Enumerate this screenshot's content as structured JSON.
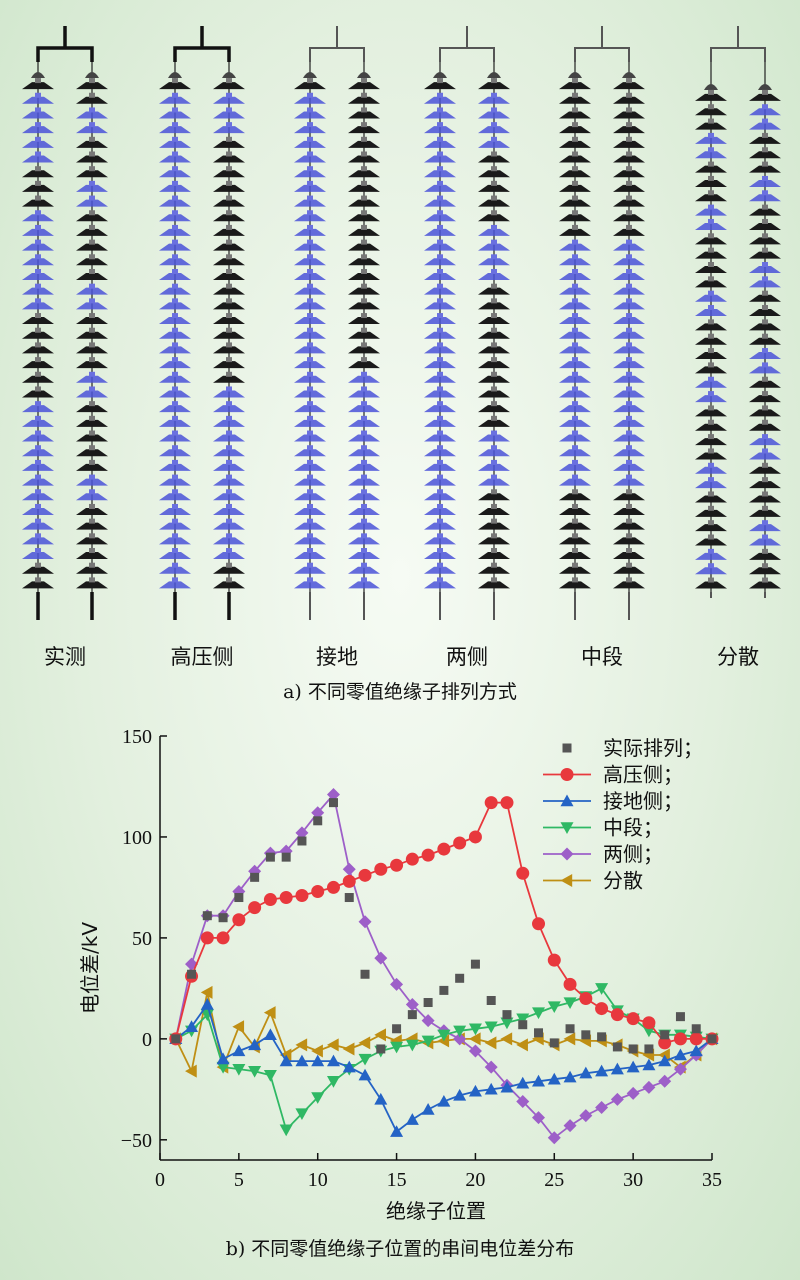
{
  "panel_a": {
    "labels": [
      "实测",
      "高压侧",
      "接地",
      "两侧",
      "中段",
      "分散"
    ],
    "caption": "a) 不同零值绝缘子排列方式",
    "colors": {
      "normal_disc": "#1a1a1a",
      "zero_disc": "#4a52d8",
      "frame_dark": "#111111",
      "frame_light": "#555555"
    }
  },
  "panel_b": {
    "caption": "b) 不同零值绝缘子位置的串间电位差分布"
  },
  "chart_data": {
    "type": "line",
    "xlabel": "绝缘子位置",
    "ylabel": "电位差/kV",
    "xlim": [
      0,
      35
    ],
    "ylim": [
      -60,
      150
    ],
    "xticks": [
      0,
      5,
      10,
      15,
      20,
      25,
      30,
      35
    ],
    "yticks": [
      -50,
      0,
      50,
      100,
      150
    ],
    "grid": false,
    "legend_position": "top-right",
    "series": [
      {
        "name": "实际排列；",
        "marker": "square",
        "color": "#555555",
        "line": false,
        "x": [
          1,
          2,
          3,
          4,
          5,
          6,
          7,
          8,
          9,
          10,
          11,
          12,
          13,
          14,
          15,
          16,
          17,
          18,
          19,
          20,
          21,
          22,
          23,
          24,
          25,
          26,
          27,
          28,
          29,
          30,
          31,
          32,
          33,
          34,
          35
        ],
        "y": [
          0,
          32,
          61,
          60,
          70,
          80,
          90,
          90,
          98,
          108,
          117,
          70,
          32,
          -5,
          5,
          12,
          18,
          24,
          30,
          37,
          19,
          12,
          7,
          3,
          -2,
          5,
          2,
          1,
          -4,
          -5,
          -5,
          2,
          11,
          5,
          0
        ]
      },
      {
        "name": "高压侧；",
        "marker": "circle",
        "color": "#e8383d",
        "line": true,
        "x": [
          1,
          2,
          3,
          4,
          5,
          6,
          7,
          8,
          9,
          10,
          11,
          12,
          13,
          14,
          15,
          16,
          17,
          18,
          19,
          20,
          21,
          22,
          23,
          24,
          25,
          26,
          27,
          28,
          29,
          30,
          31,
          32,
          33,
          34,
          35
        ],
        "y": [
          0,
          31,
          50,
          50,
          59,
          65,
          69,
          70,
          71,
          73,
          75,
          78,
          81,
          84,
          86,
          89,
          91,
          94,
          97,
          100,
          117,
          117,
          82,
          57,
          39,
          27,
          20,
          15,
          12,
          10,
          8,
          -2,
          0,
          0,
          0
        ]
      },
      {
        "name": "接地侧；",
        "marker": "triangle-up",
        "color": "#2463c5",
        "line": true,
        "x": [
          1,
          2,
          3,
          4,
          5,
          6,
          7,
          8,
          9,
          10,
          11,
          12,
          13,
          14,
          15,
          16,
          17,
          18,
          19,
          20,
          21,
          22,
          23,
          24,
          25,
          26,
          27,
          28,
          29,
          30,
          31,
          32,
          33,
          34,
          35
        ],
        "y": [
          0,
          6,
          17,
          -10,
          -6,
          -3,
          2,
          -11,
          -11,
          -11,
          -11,
          -14,
          -18,
          -30,
          -46,
          -40,
          -35,
          -31,
          -28,
          -26,
          -25,
          -24,
          -22,
          -21,
          -20,
          -19,
          -17,
          -16,
          -15,
          -14,
          -13,
          -11,
          -8,
          -6,
          0
        ]
      },
      {
        "name": "中段；",
        "marker": "triangle-down",
        "color": "#2fb864",
        "line": true,
        "x": [
          1,
          2,
          3,
          4,
          5,
          6,
          7,
          8,
          9,
          10,
          11,
          12,
          13,
          14,
          15,
          16,
          17,
          18,
          19,
          20,
          21,
          22,
          23,
          24,
          25,
          26,
          27,
          28,
          29,
          30,
          31,
          32,
          33,
          34,
          35
        ],
        "y": [
          0,
          4,
          12,
          -14,
          -15,
          -16,
          -18,
          -45,
          -37,
          -29,
          -21,
          -15,
          -10,
          -6,
          -4,
          -3,
          -1,
          2,
          4,
          5,
          6,
          8,
          10,
          13,
          16,
          18,
          21,
          25,
          14,
          10,
          4,
          2,
          2,
          1,
          0
        ]
      },
      {
        "name": "两侧；",
        "marker": "diamond",
        "color": "#9d5fc8",
        "line": true,
        "x": [
          1,
          2,
          3,
          4,
          5,
          6,
          7,
          8,
          9,
          10,
          11,
          12,
          13,
          14,
          15,
          16,
          17,
          18,
          19,
          20,
          21,
          22,
          23,
          24,
          25,
          26,
          27,
          28,
          29,
          30,
          31,
          32,
          33,
          34,
          35
        ],
        "y": [
          0,
          37,
          61,
          61,
          73,
          83,
          92,
          93,
          102,
          112,
          121,
          84,
          58,
          40,
          27,
          17,
          9,
          4,
          0,
          -6,
          -14,
          -23,
          -31,
          -39,
          -49,
          -43,
          -38,
          -34,
          -30,
          -27,
          -24,
          -21,
          -15,
          -8,
          0
        ]
      },
      {
        "name": "分散",
        "marker": "triangle-left",
        "color": "#bf8f14",
        "line": true,
        "x": [
          1,
          2,
          3,
          4,
          5,
          6,
          7,
          8,
          9,
          10,
          11,
          12,
          13,
          14,
          15,
          16,
          17,
          18,
          19,
          20,
          21,
          22,
          23,
          24,
          25,
          26,
          27,
          28,
          29,
          30,
          31,
          32,
          33,
          34,
          35
        ],
        "y": [
          0,
          -16,
          23,
          -14,
          6,
          -4,
          13,
          -8,
          -3,
          -6,
          -3,
          -5,
          -2,
          2,
          -1,
          0,
          -2,
          -1,
          0,
          0,
          -2,
          0,
          -3,
          0,
          -3,
          0,
          -1,
          -1,
          -3,
          -6,
          -8,
          -8,
          -14,
          -8,
          0
        ]
      }
    ]
  }
}
